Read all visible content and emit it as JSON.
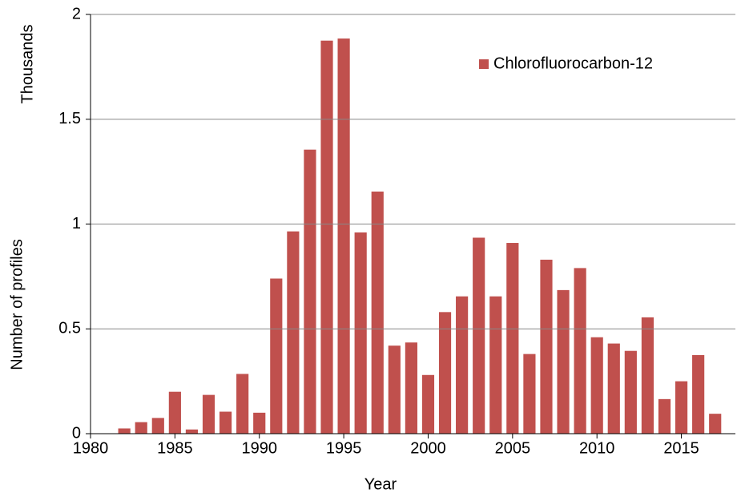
{
  "chart_data": {
    "type": "bar",
    "x": [
      1982,
      1983,
      1984,
      1985,
      1986,
      1987,
      1988,
      1989,
      1990,
      1991,
      1992,
      1993,
      1994,
      1995,
      1996,
      1997,
      1998,
      1999,
      2000,
      2001,
      2002,
      2003,
      2004,
      2005,
      2006,
      2007,
      2008,
      2009,
      2010,
      2011,
      2012,
      2013,
      2014,
      2015,
      2016,
      2017
    ],
    "series": [
      {
        "name": "Chlorofluorocarbon-12",
        "color": "#c0504d",
        "values": [
          0.025,
          0.055,
          0.075,
          0.2,
          0.02,
          0.185,
          0.105,
          0.285,
          0.1,
          0.74,
          0.965,
          1.355,
          1.875,
          1.885,
          0.96,
          1.155,
          0.42,
          0.435,
          0.28,
          0.58,
          0.655,
          0.935,
          0.655,
          0.91,
          0.38,
          0.83,
          0.685,
          0.79,
          0.46,
          0.43,
          0.395,
          0.555,
          0.165,
          0.25,
          0.375,
          0.095
        ]
      }
    ],
    "xlabel": "Year",
    "ylabel": "Number of profiles",
    "yunit_label": "Thousands",
    "xlim": [
      1980,
      2018.2
    ],
    "xticks": [
      1980,
      1985,
      1990,
      1995,
      2000,
      2005,
      2010,
      2015
    ],
    "ylim": [
      0,
      2
    ],
    "yticks": [
      0,
      0.5,
      1,
      1.5,
      2
    ],
    "grid": true,
    "legend": "upper right"
  }
}
